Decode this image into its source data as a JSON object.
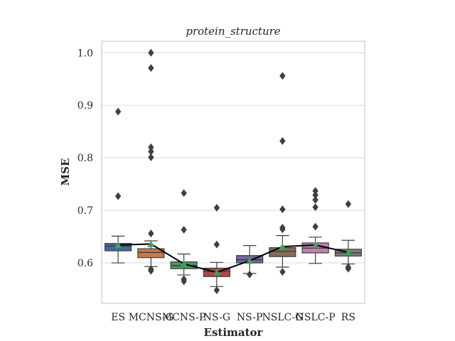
{
  "chart_data": {
    "type": "box",
    "title": "protein_structure",
    "xlabel": "Estimator",
    "ylabel": "MSE",
    "ylim": [
      0.523,
      1.022
    ],
    "yticks": [
      0.6,
      0.7,
      0.8,
      0.9,
      1.0
    ],
    "ytick_labels": [
      "0.6",
      "0.7",
      "0.8",
      "0.9",
      "1.0"
    ],
    "grid": true,
    "categories": [
      "ES",
      "MCNS-G",
      "MCNS-P",
      "NS-G",
      "NS-P",
      "NSLC-G",
      "NSLC-P",
      "RS"
    ],
    "boxes": [
      {
        "category": "ES",
        "color": "#4c72b0",
        "q1": 0.623,
        "median": 0.632,
        "q3": 0.637,
        "whisker_low": 0.6,
        "whisker_high": 0.651,
        "mean": 0.634,
        "outliers": [
          0.888,
          0.727
        ]
      },
      {
        "category": "MCNS-G",
        "color": "#dd8452",
        "q1": 0.61,
        "median": 0.62,
        "q3": 0.627,
        "whisker_low": 0.593,
        "whisker_high": 0.642,
        "mean": 0.636,
        "outliers": [
          1.0,
          0.971,
          0.82,
          0.812,
          0.801,
          0.656,
          0.588,
          0.585
        ]
      },
      {
        "category": "MCNS-P",
        "color": "#55a868",
        "q1": 0.589,
        "median": 0.595,
        "q3": 0.602,
        "whisker_low": 0.577,
        "whisker_high": 0.617,
        "mean": 0.598,
        "outliers": [
          0.733,
          0.663,
          0.569,
          0.565
        ]
      },
      {
        "category": "NS-G",
        "color": "#c44e52",
        "q1": 0.574,
        "median": 0.584,
        "q3": 0.59,
        "whisker_low": 0.555,
        "whisker_high": 0.601,
        "mean": 0.582,
        "outliers": [
          0.705,
          0.635,
          0.548
        ]
      },
      {
        "category": "NS-P",
        "color": "#8172b3",
        "q1": 0.6,
        "median": 0.606,
        "q3": 0.614,
        "whisker_low": 0.58,
        "whisker_high": 0.633,
        "mean": 0.604,
        "outliers": [
          0.578
        ]
      },
      {
        "category": "NSLC-G",
        "color": "#937860",
        "q1": 0.612,
        "median": 0.622,
        "q3": 0.629,
        "whisker_low": 0.592,
        "whisker_high": 0.652,
        "mean": 0.631,
        "outliers": [
          0.956,
          0.832,
          0.702,
          0.667,
          0.664,
          0.583
        ]
      },
      {
        "category": "NSLC-P",
        "color": "#da8bc3",
        "q1": 0.619,
        "median": 0.628,
        "q3": 0.638,
        "whisker_low": 0.599,
        "whisker_high": 0.649,
        "mean": 0.634,
        "outliers": [
          0.737,
          0.729,
          0.72,
          0.706,
          0.669
        ]
      },
      {
        "category": "RS",
        "color": "#8c8c8c",
        "q1": 0.613,
        "median": 0.619,
        "q3": 0.626,
        "whisker_low": 0.598,
        "whisker_high": 0.643,
        "mean": 0.62,
        "outliers": [
          0.712,
          0.592,
          0.589
        ]
      }
    ],
    "mean_line": {
      "values": [
        0.634,
        0.636,
        0.598,
        0.582,
        0.604,
        0.631,
        0.634,
        0.62
      ],
      "color": "#000000"
    },
    "mean_marker_color": "#3da35a"
  }
}
